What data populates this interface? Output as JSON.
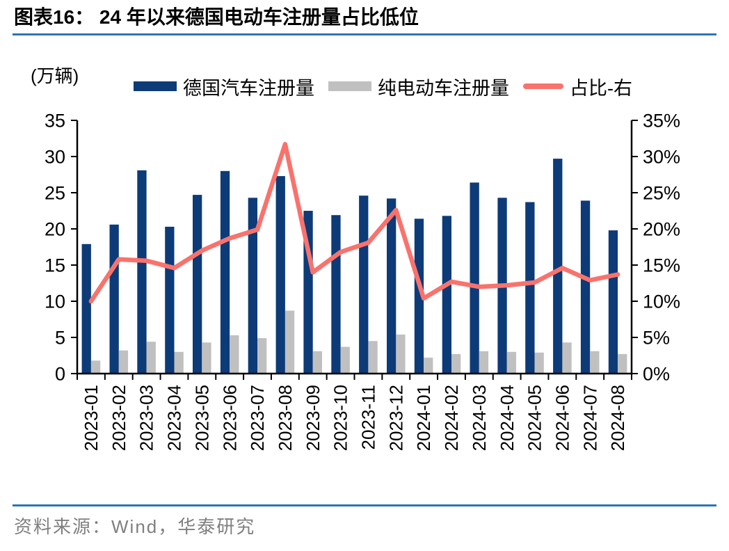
{
  "header": {
    "title": "图表16： 24 年以来德国电动车注册量占比低位"
  },
  "chart_data": {
    "type": "combo-bar-line",
    "categories": [
      "2023-01",
      "2023-02",
      "2023-03",
      "2023-04",
      "2023-05",
      "2023-06",
      "2023-07",
      "2023-08",
      "2023-09",
      "2023-10",
      "2023-11",
      "2023-12",
      "2024-01",
      "2024-02",
      "2024-03",
      "2024-04",
      "2024-05",
      "2024-06",
      "2024-07",
      "2024-08"
    ],
    "series": [
      {
        "name": "德国汽车注册量",
        "type": "bar",
        "axis": "left",
        "color": "#0C3B78",
        "values": [
          17.9,
          20.6,
          28.1,
          20.3,
          24.7,
          28.0,
          24.3,
          27.3,
          22.5,
          21.9,
          24.6,
          24.2,
          21.4,
          21.8,
          26.4,
          24.3,
          23.7,
          29.7,
          23.9,
          19.8
        ]
      },
      {
        "name": "纯电动车注册量",
        "type": "bar",
        "axis": "left",
        "color": "#C0C0C0",
        "values": [
          1.8,
          3.2,
          4.4,
          3.0,
          4.3,
          5.3,
          4.9,
          8.7,
          3.1,
          3.7,
          4.5,
          5.4,
          2.2,
          2.7,
          3.1,
          3.0,
          2.9,
          4.3,
          3.1,
          2.7
        ]
      },
      {
        "name": "占比-右",
        "type": "line",
        "axis": "right",
        "color": "#F9726C",
        "values": [
          10.0,
          15.8,
          15.6,
          14.6,
          17.0,
          18.7,
          19.9,
          31.7,
          14.0,
          16.8,
          18.1,
          22.6,
          10.4,
          12.7,
          12.0,
          12.2,
          12.6,
          14.6,
          12.9,
          13.7
        ]
      }
    ],
    "left_axis": {
      "label": "(万辆)",
      "min": 0,
      "max": 35,
      "step": 5,
      "tick_labels": [
        "0",
        "5",
        "10",
        "15",
        "20",
        "25",
        "30",
        "35"
      ]
    },
    "right_axis": {
      "min": 0,
      "max": 35,
      "step": 5,
      "unit": "%",
      "tick_labels": [
        "0%",
        "5%",
        "10%",
        "15%",
        "20%",
        "25%",
        "30%",
        "35%"
      ]
    },
    "grid": false,
    "legend_position": "top"
  },
  "colors": {
    "rule_line": "#2E74B5",
    "axis": "#000000",
    "source_text": "#7F7F7F"
  },
  "footer": {
    "source": "资料来源：Wind，华泰研究"
  }
}
